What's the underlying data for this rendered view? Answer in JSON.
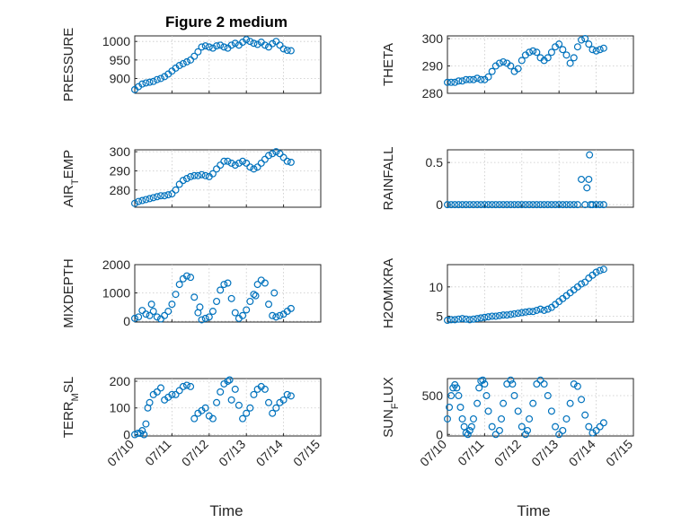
{
  "figure": {
    "title": "Figure 2 medium",
    "x_axis_label": "Time",
    "x_tick_labels": [
      "07/10",
      "07/11",
      "07/12",
      "07/13",
      "07/14",
      "07/15"
    ],
    "marker_color": "#0072BD"
  },
  "chart_data": [
    {
      "type": "scatter",
      "ylabel": "PRESSURE",
      "title": "Figure 2 medium",
      "xlabel": "",
      "xlim": [
        0,
        5
      ],
      "ylim": [
        860,
        1015
      ],
      "yticks": [
        900,
        950,
        1000
      ],
      "grid": true,
      "x": [
        0.0,
        0.1,
        0.2,
        0.3,
        0.4,
        0.5,
        0.6,
        0.7,
        0.8,
        0.9,
        1.0,
        1.1,
        1.2,
        1.3,
        1.4,
        1.5,
        1.6,
        1.7,
        1.8,
        1.9,
        2.0,
        2.1,
        2.2,
        2.3,
        2.4,
        2.5,
        2.6,
        2.7,
        2.8,
        2.9,
        3.0,
        3.1,
        3.2,
        3.3,
        3.4,
        3.5,
        3.6,
        3.7,
        3.8,
        3.9,
        4.0,
        4.1,
        4.2
      ],
      "values": [
        870,
        878,
        885,
        888,
        890,
        892,
        897,
        900,
        905,
        912,
        920,
        928,
        935,
        940,
        945,
        950,
        960,
        972,
        985,
        988,
        985,
        982,
        988,
        990,
        985,
        982,
        990,
        995,
        990,
        998,
        1005,
        1000,
        995,
        992,
        998,
        990,
        985,
        994,
        1000,
        990,
        980,
        976,
        975
      ]
    },
    {
      "type": "scatter",
      "ylabel": "THETA",
      "xlim": [
        0,
        5
      ],
      "ylim": [
        280,
        301
      ],
      "yticks": [
        280,
        290,
        300
      ],
      "grid": true,
      "x": [
        0.0,
        0.1,
        0.2,
        0.3,
        0.4,
        0.5,
        0.6,
        0.7,
        0.8,
        0.9,
        1.0,
        1.1,
        1.2,
        1.3,
        1.4,
        1.5,
        1.6,
        1.7,
        1.8,
        1.9,
        2.0,
        2.1,
        2.2,
        2.3,
        2.4,
        2.5,
        2.6,
        2.7,
        2.8,
        2.9,
        3.0,
        3.1,
        3.2,
        3.3,
        3.4,
        3.5,
        3.6,
        3.7,
        3.8,
        3.9,
        4.0,
        4.1,
        4.2
      ],
      "values": [
        284,
        284,
        284,
        284.5,
        284.5,
        285,
        285,
        285,
        285.5,
        285,
        285,
        286,
        288,
        290,
        291,
        291.5,
        291,
        290,
        288,
        289,
        292,
        294,
        295,
        295.5,
        295,
        293,
        292,
        293,
        295,
        297,
        298,
        296,
        294,
        291,
        293,
        297,
        299.5,
        300,
        298,
        296,
        295.5,
        296,
        296.5
      ]
    },
    {
      "type": "scatter",
      "ylabel": "AIR_TEMP",
      "xlim": [
        0,
        5
      ],
      "ylim": [
        271,
        301
      ],
      "yticks": [
        280,
        290,
        300
      ],
      "grid": true,
      "x": [
        0.0,
        0.1,
        0.2,
        0.3,
        0.4,
        0.5,
        0.6,
        0.7,
        0.8,
        0.9,
        1.0,
        1.1,
        1.2,
        1.3,
        1.4,
        1.5,
        1.6,
        1.7,
        1.8,
        1.9,
        2.0,
        2.1,
        2.2,
        2.3,
        2.4,
        2.5,
        2.6,
        2.7,
        2.8,
        2.9,
        3.0,
        3.1,
        3.2,
        3.3,
        3.4,
        3.5,
        3.6,
        3.7,
        3.8,
        3.9,
        4.0,
        4.1,
        4.2
      ],
      "values": [
        273,
        274,
        274.5,
        275,
        275.5,
        276,
        276.5,
        277,
        277,
        277.5,
        278,
        280,
        283,
        285,
        286,
        287,
        287.5,
        287.5,
        288,
        287.5,
        287,
        288.5,
        291,
        293,
        295,
        295,
        294,
        293,
        294,
        295,
        294,
        292,
        291,
        292,
        294,
        296,
        298,
        299,
        300,
        299,
        297,
        295,
        294.5
      ]
    },
    {
      "type": "scatter",
      "ylabel": "RAINFALL",
      "xlim": [
        0,
        5
      ],
      "ylim": [
        -0.03,
        0.65
      ],
      "yticks": [
        0,
        0.5
      ],
      "grid": true,
      "x": [
        0.0,
        0.1,
        0.2,
        0.3,
        0.4,
        0.5,
        0.6,
        0.7,
        0.8,
        0.9,
        1.0,
        1.1,
        1.2,
        1.3,
        1.4,
        1.5,
        1.6,
        1.7,
        1.8,
        1.9,
        2.0,
        2.1,
        2.2,
        2.3,
        2.4,
        2.5,
        2.6,
        2.7,
        2.8,
        2.9,
        3.0,
        3.1,
        3.2,
        3.3,
        3.4,
        3.5,
        3.6,
        3.7,
        3.75,
        3.8,
        3.82,
        3.85,
        3.9,
        4.0,
        4.1,
        4.2
      ],
      "values": [
        0,
        0,
        0,
        0,
        0,
        0,
        0,
        0,
        0,
        0,
        0,
        0,
        0,
        0,
        0,
        0,
        0,
        0,
        0,
        0,
        0,
        0,
        0,
        0,
        0,
        0,
        0,
        0,
        0,
        0,
        0,
        0,
        0,
        0,
        0,
        0,
        0.3,
        0,
        0.2,
        0.3,
        0.59,
        0,
        0,
        0,
        0,
        0
      ]
    },
    {
      "type": "scatter",
      "ylabel": "MIXDEPTH",
      "xlim": [
        0,
        5
      ],
      "ylim": [
        -30,
        2000
      ],
      "yticks": [
        0,
        1000,
        2000
      ],
      "grid": true,
      "x": [
        0.0,
        0.1,
        0.2,
        0.3,
        0.4,
        0.45,
        0.5,
        0.6,
        0.7,
        0.8,
        0.9,
        1.0,
        1.1,
        1.2,
        1.3,
        1.4,
        1.5,
        1.6,
        1.7,
        1.75,
        1.8,
        1.9,
        2.0,
        2.1,
        2.2,
        2.3,
        2.4,
        2.5,
        2.6,
        2.7,
        2.8,
        2.9,
        3.0,
        3.1,
        3.2,
        3.25,
        3.3,
        3.4,
        3.5,
        3.6,
        3.7,
        3.75,
        3.8,
        3.9,
        4.0,
        4.1,
        4.2
      ],
      "values": [
        100,
        150,
        380,
        250,
        200,
        600,
        350,
        150,
        80,
        200,
        350,
        600,
        950,
        1300,
        1500,
        1600,
        1550,
        850,
        300,
        500,
        50,
        100,
        150,
        350,
        700,
        1100,
        1300,
        1350,
        800,
        300,
        100,
        200,
        400,
        700,
        950,
        900,
        1300,
        1450,
        1350,
        600,
        200,
        1000,
        150,
        200,
        250,
        350,
        450
      ]
    },
    {
      "type": "scatter",
      "ylabel": "H2OMIXRA",
      "xlim": [
        0,
        5
      ],
      "ylim": [
        4,
        13.8
      ],
      "yticks": [
        5,
        10
      ],
      "grid": true,
      "x": [
        0.0,
        0.1,
        0.2,
        0.3,
        0.4,
        0.5,
        0.6,
        0.7,
        0.8,
        0.9,
        1.0,
        1.1,
        1.2,
        1.3,
        1.4,
        1.5,
        1.6,
        1.7,
        1.8,
        1.9,
        2.0,
        2.1,
        2.2,
        2.3,
        2.4,
        2.5,
        2.6,
        2.7,
        2.8,
        2.9,
        3.0,
        3.1,
        3.2,
        3.3,
        3.4,
        3.5,
        3.6,
        3.7,
        3.8,
        3.9,
        4.0,
        4.1,
        4.2
      ],
      "values": [
        4.3,
        4.4,
        4.4,
        4.5,
        4.6,
        4.5,
        4.4,
        4.5,
        4.6,
        4.7,
        4.8,
        4.9,
        5.0,
        5.0,
        5.1,
        5.2,
        5.2,
        5.3,
        5.4,
        5.5,
        5.6,
        5.7,
        5.8,
        5.8,
        6.0,
        6.2,
        6.0,
        6.2,
        6.5,
        7.0,
        7.5,
        8.0,
        8.5,
        9.0,
        9.5,
        10.0,
        10.5,
        10.8,
        11.5,
        12.0,
        12.5,
        12.8,
        13.0
      ]
    },
    {
      "type": "scatter",
      "ylabel": "TERR_MSL",
      "xlim": [
        0,
        5
      ],
      "ylim": [
        -5,
        210
      ],
      "yticks": [
        0,
        100,
        200
      ],
      "grid": true,
      "x": [
        0.0,
        0.08,
        0.15,
        0.2,
        0.25,
        0.3,
        0.35,
        0.4,
        0.5,
        0.6,
        0.7,
        0.8,
        0.9,
        1.0,
        1.1,
        1.2,
        1.3,
        1.4,
        1.5,
        1.6,
        1.7,
        1.8,
        1.9,
        2.0,
        2.1,
        2.2,
        2.3,
        2.4,
        2.5,
        2.55,
        2.6,
        2.7,
        2.8,
        2.9,
        3.0,
        3.1,
        3.2,
        3.3,
        3.4,
        3.5,
        3.6,
        3.7,
        3.8,
        3.9,
        4.0,
        4.1,
        4.2
      ],
      "values": [
        0,
        5,
        5,
        15,
        0,
        40,
        100,
        120,
        150,
        160,
        175,
        130,
        140,
        150,
        150,
        165,
        180,
        185,
        180,
        60,
        80,
        90,
        100,
        70,
        60,
        120,
        160,
        190,
        200,
        205,
        130,
        170,
        110,
        60,
        80,
        100,
        150,
        170,
        180,
        170,
        120,
        80,
        100,
        120,
        130,
        150,
        145
      ]
    },
    {
      "type": "scatter",
      "ylabel": "SUN_FLUX",
      "xlim": [
        0,
        5
      ],
      "ylim": [
        -20,
        720
      ],
      "yticks": [
        0,
        500
      ],
      "grid": true,
      "x": [
        0.0,
        0.05,
        0.1,
        0.15,
        0.2,
        0.25,
        0.3,
        0.35,
        0.4,
        0.45,
        0.5,
        0.55,
        0.6,
        0.65,
        0.7,
        0.8,
        0.85,
        0.9,
        0.95,
        1.0,
        1.05,
        1.1,
        1.2,
        1.3,
        1.4,
        1.45,
        1.5,
        1.6,
        1.7,
        1.75,
        1.8,
        1.9,
        2.0,
        2.1,
        2.15,
        2.2,
        2.3,
        2.4,
        2.5,
        2.6,
        2.7,
        2.8,
        2.9,
        3.0,
        3.1,
        3.2,
        3.3,
        3.4,
        3.5,
        3.6,
        3.7,
        3.8,
        3.9,
        4.0,
        4.1,
        4.2
      ],
      "values": [
        200,
        350,
        500,
        600,
        640,
        600,
        500,
        350,
        200,
        100,
        20,
        0,
        50,
        100,
        200,
        400,
        600,
        690,
        700,
        650,
        500,
        300,
        100,
        0,
        50,
        200,
        400,
        650,
        700,
        650,
        500,
        300,
        100,
        0,
        50,
        200,
        400,
        650,
        700,
        650,
        500,
        300,
        100,
        0,
        50,
        200,
        400,
        650,
        620,
        450,
        250,
        100,
        20,
        50,
        100,
        150
      ]
    }
  ]
}
